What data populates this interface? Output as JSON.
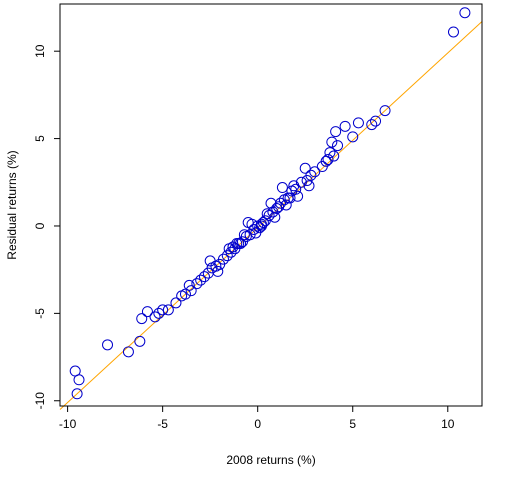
{
  "chart_data": {
    "type": "scatter",
    "xlabel": "2008 returns (%)",
    "ylabel": "Residual returns (%)",
    "xlim": [
      -10.4,
      11.8
    ],
    "ylim": [
      -10.3,
      12.7
    ],
    "xticks": [
      -10,
      -5,
      0,
      5,
      10
    ],
    "yticks": [
      -10,
      -5,
      0,
      5,
      10
    ],
    "xtick_labels": [
      "-10",
      "-5",
      "0",
      "5",
      "10"
    ],
    "ytick_labels": [
      "-10",
      "-5",
      "0",
      "5",
      "10"
    ],
    "grid": false,
    "legend": "none",
    "colors": {
      "points": "#0000cc",
      "fit_line": "#ffa500",
      "frame": "#000000"
    },
    "fit_line": {
      "x": [
        -10.4,
        11.8
      ],
      "y": [
        -10.5,
        11.7
      ]
    },
    "series": [
      {
        "x": [
          10.9,
          10.3,
          6.7,
          6.2,
          6.0,
          5.3,
          4.6,
          4.1,
          3.9,
          4.0,
          3.8,
          3.6,
          3.4,
          4.2,
          3.7,
          5.0,
          3.0,
          2.8,
          2.5,
          2.6,
          2.3,
          2.0,
          1.8,
          2.1,
          1.6,
          1.4,
          1.5,
          1.2,
          1.0,
          1.1,
          0.8,
          0.6,
          0.9,
          0.5,
          0.4,
          0.2,
          0.0,
          0.3,
          0.1,
          -0.2,
          -0.4,
          -0.6,
          -0.3,
          -0.8,
          -1.0,
          -0.7,
          -1.2,
          -1.4,
          -1.6,
          -1.1,
          -1.8,
          -2.0,
          -2.2,
          -2.4,
          -2.6,
          -3.0,
          -2.8,
          -3.2,
          -3.5,
          -3.8,
          -4.0,
          -4.3,
          -3.6,
          -4.7,
          -5.0,
          -5.2,
          -5.4,
          -5.8,
          -6.1,
          -6.2,
          -6.8,
          -7.9,
          -9.6,
          -9.4,
          -9.5,
          1.9,
          1.3,
          0.7,
          -0.1,
          -0.5,
          -1.5,
          -2.5,
          2.7,
          1.7,
          0.2,
          -0.9,
          -1.3,
          -2.1
        ],
        "y": [
          12.2,
          11.1,
          6.6,
          6.0,
          5.8,
          5.9,
          5.7,
          5.4,
          4.8,
          4.0,
          4.2,
          3.7,
          3.4,
          4.6,
          3.8,
          5.1,
          3.1,
          2.9,
          3.3,
          2.6,
          2.5,
          2.1,
          2.0,
          1.7,
          1.6,
          1.5,
          1.2,
          1.3,
          1.0,
          1.1,
          0.8,
          0.6,
          0.5,
          0.7,
          0.3,
          0.1,
          0.0,
          0.2,
          -0.1,
          -0.2,
          -0.5,
          -0.6,
          0.1,
          -0.9,
          -1.0,
          -0.5,
          -1.3,
          -1.5,
          -1.7,
          -1.0,
          -1.9,
          -2.2,
          -2.3,
          -2.4,
          -2.7,
          -3.1,
          -2.9,
          -3.3,
          -3.7,
          -3.9,
          -4.0,
          -4.4,
          -3.4,
          -4.8,
          -4.8,
          -5.0,
          -5.2,
          -4.9,
          -5.3,
          -6.6,
          -7.2,
          -6.8,
          -8.3,
          -8.8,
          -9.6,
          2.3,
          2.2,
          1.3,
          -0.4,
          0.2,
          -1.3,
          -2.0,
          2.3,
          1.6,
          0.0,
          -1.0,
          -1.2,
          -2.6
        ]
      }
    ]
  }
}
